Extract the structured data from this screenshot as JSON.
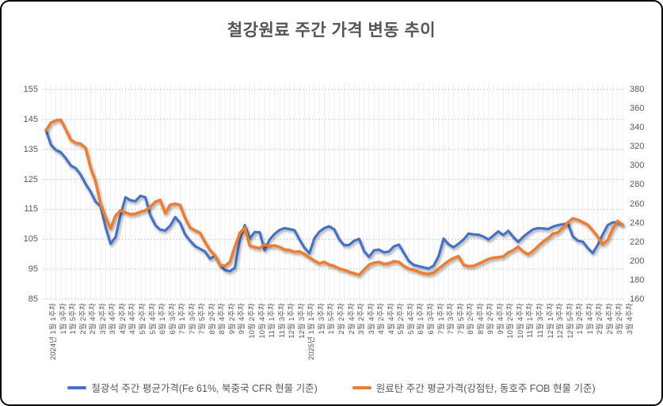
{
  "title": "철강원료 주간 가격 변동 추이",
  "legend": [
    {
      "label": "철광석 주간 평균가격(Fe 61%, 북중국 CFR 현물 기준)",
      "color": "#4472C4"
    },
    {
      "label": "원료탄 주간 평균가격(강점탄, 동호주 FOB 현물 기준)",
      "color": "#ED7D31"
    }
  ],
  "chart_data": {
    "type": "line",
    "title": "철강원료 주간 가격 변동 추이",
    "grid": true,
    "legend_position": "bottom",
    "left_axis": {
      "min": 85,
      "max": 155,
      "ticks": [
        "155",
        "145",
        "135",
        "125",
        "115",
        "105",
        "95",
        "85"
      ]
    },
    "right_axis": {
      "min": 160,
      "max": 380,
      "ticks": [
        "380",
        "360",
        "340",
        "320",
        "300",
        "280",
        "260",
        "240",
        "220",
        "200",
        "180",
        "160"
      ]
    },
    "x_tick_labels": [
      "2024년 1월 1주차",
      "1월 3주차",
      "1월 5주차",
      "2월 2주차",
      "2월 4주차",
      "3월 2주차",
      "3월 4주차",
      "4월 2주차",
      "4월 4주차",
      "5월 2주차",
      "5월 4주차",
      "6월 1주차",
      "6월 3주차",
      "7월 1주차",
      "7월 3주차",
      "7월 5주차",
      "8월 2주차",
      "8월 4주차",
      "9월 2주차",
      "9월 4주차",
      "10월 2주차",
      "10월 4주차",
      "11월 1주차",
      "11월 3주차",
      "12월 1주차",
      "12월 3주차",
      "2025년 1월 1주차",
      "1월 3주차",
      "1월 5주차",
      "2월 2주차",
      "2월 4주차",
      "3월 2주차",
      "3월 4주차",
      "4월 2주차",
      "4월 4주차",
      "5월 2주차",
      "5월 4주차",
      "6월 1주차",
      "6월 3주차",
      "7월 1주차",
      "7월 3주차",
      "7월 5주차",
      "8월 2주차",
      "8월 4주차",
      "9월 2주차",
      "9월 4주차",
      "10월 2주차",
      "10월 4주차",
      "11월 1주차",
      "11월 3주차",
      "12월 1주차",
      "12월 3주차",
      "12월 5주차",
      "1월 2주차",
      "1월 4주차",
      "2월 2주차",
      "2월 4주차",
      "3월 2주차",
      "3월 4주차"
    ],
    "series": [
      {
        "name": "철광석 주간 평균가격(Fe 61%, 북중국 CFR 현물 기준)",
        "axis": "left",
        "color": "#4472C4",
        "values": [
          141.5,
          136.5,
          134.8,
          134,
          132,
          129.6,
          128.7,
          126.5,
          123.4,
          120.8,
          117.5,
          116,
          109,
          103.5,
          105.7,
          113,
          119,
          118,
          117.7,
          119.5,
          119,
          113,
          109.7,
          108.2,
          107.9,
          109.5,
          112.4,
          110.5,
          106.6,
          104.5,
          102.7,
          101.8,
          100.9,
          98.5,
          99.5,
          96.5,
          94.7,
          94.3,
          95.5,
          105,
          109.7,
          105.2,
          107.4,
          107.3,
          101.3,
          104.9,
          106.8,
          108.1,
          108.7,
          108.4,
          108,
          104.9,
          102.2,
          100.3,
          105.3,
          107.5,
          108.7,
          109.3,
          108.3,
          104.9,
          103,
          103.1,
          104.5,
          105.1,
          101,
          99.1,
          101.3,
          101.5,
          100.6,
          100.9,
          102.6,
          103.2,
          100.4,
          97.7,
          96.4,
          96,
          95.6,
          95.2,
          96.2,
          99.4,
          105.2,
          103.3,
          102.3,
          103.5,
          104.9,
          106.9,
          106.6,
          106.5,
          105.9,
          104.9,
          106.2,
          107.6,
          106.4,
          107.8,
          105.8,
          104.1,
          105.8,
          107.1,
          108.3,
          108.7,
          108.6,
          108.4,
          109.2,
          109.7,
          110,
          110.3,
          105.9,
          104.5,
          104.2,
          102,
          100.4,
          103.1,
          106.6,
          109.7,
          110.6,
          110.7,
          109.8
        ]
      },
      {
        "name": "원료탄 주간 평균가격(강점탄, 동호주 FOB 현물 기준)",
        "axis": "right",
        "color": "#ED7D31",
        "values": [
          337,
          345,
          347.5,
          348,
          338,
          327,
          324,
          322.8,
          318.3,
          297.5,
          283,
          260,
          246,
          234,
          247.5,
          253,
          251,
          249,
          249.5,
          251.5,
          253,
          257,
          262,
          264,
          250,
          259,
          260,
          258.6,
          245,
          235,
          232,
          229.4,
          220,
          211.4,
          206,
          196,
          194.7,
          198.9,
          215,
          229.4,
          235,
          216,
          214.5,
          213.5,
          217.5,
          215.4,
          216.3,
          214.6,
          212,
          211.4,
          209.5,
          210,
          207.2,
          203.6,
          200.3,
          197.5,
          198.9,
          196.1,
          194.7,
          191.9,
          190.6,
          188.6,
          187,
          185.4,
          191,
          196,
          198.1,
          198.9,
          196.9,
          197.5,
          199.7,
          198.9,
          194.7,
          191.9,
          190.6,
          188.6,
          186.9,
          186.4,
          187.8,
          191.9,
          196.1,
          200,
          203,
          205,
          196,
          194.4,
          194.8,
          197,
          199.4,
          202,
          203.3,
          204,
          204.7,
          208.9,
          211.4,
          214.9,
          210,
          207,
          210.6,
          215.6,
          220.3,
          224,
          228.7,
          230,
          235,
          240.5,
          244.7,
          243.3,
          240.6,
          238,
          232,
          225.5,
          217.5,
          222,
          233.6,
          241.9,
          238
        ]
      }
    ]
  }
}
